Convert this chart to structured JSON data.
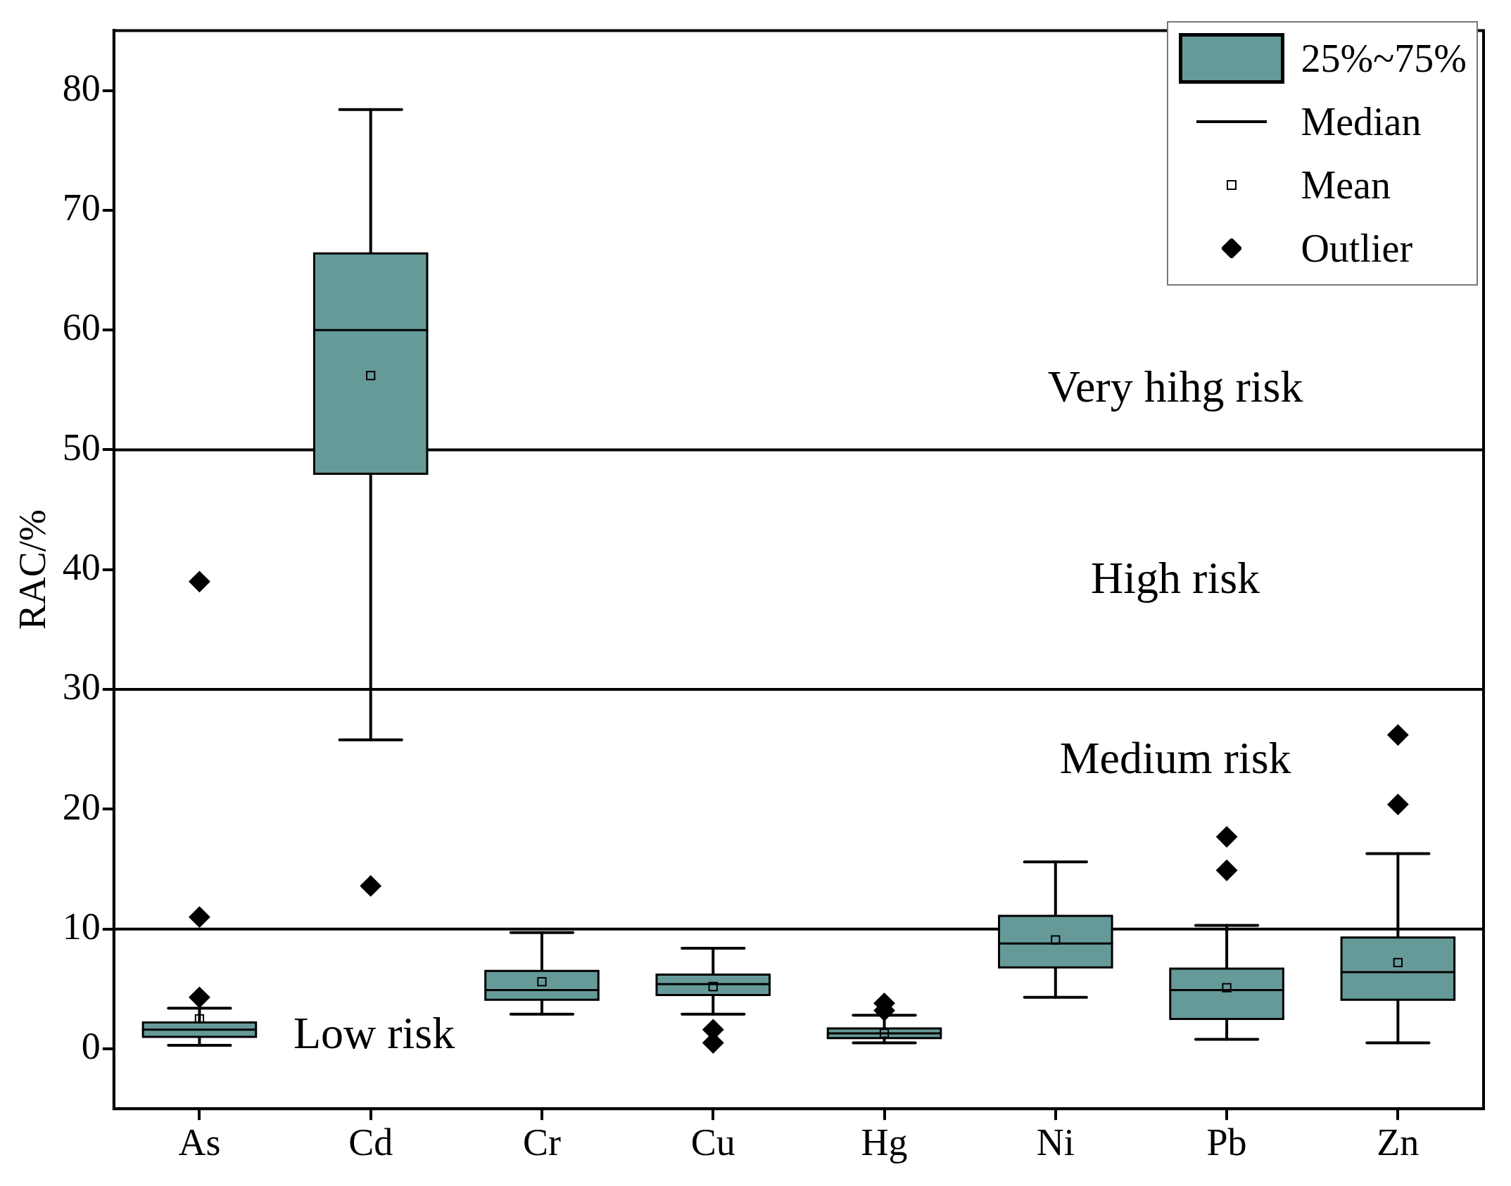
{
  "chart_data": {
    "type": "box",
    "ylabel": "RAC/%",
    "categories": [
      "As",
      "Cd",
      "Cr",
      "Cu",
      "Hg",
      "Ni",
      "Pb",
      "Zn"
    ],
    "ylim": [
      -5,
      85
    ],
    "yticks": [
      0,
      10,
      20,
      30,
      40,
      50,
      60,
      70,
      80
    ],
    "legend": "top right",
    "series": [
      {
        "name": "25%~75%",
        "color": "#669a98",
        "boxes": [
          {
            "low": 0.3,
            "q1": 1.0,
            "median": 1.6,
            "q3": 2.2,
            "high": 3.4
          },
          {
            "low": 25.8,
            "q1": 48.0,
            "median": 60.0,
            "q3": 66.4,
            "high": 78.4
          },
          {
            "low": 2.9,
            "q1": 4.1,
            "median": 4.9,
            "q3": 6.5,
            "high": 9.7
          },
          {
            "low": 2.9,
            "q1": 4.5,
            "median": 5.4,
            "q3": 6.2,
            "high": 8.4
          },
          {
            "low": 0.5,
            "q1": 0.9,
            "median": 1.3,
            "q3": 1.7,
            "high": 2.8
          },
          {
            "low": 4.3,
            "q1": 6.8,
            "median": 8.8,
            "q3": 11.1,
            "high": 15.6
          },
          {
            "low": 0.8,
            "q1": 2.5,
            "median": 4.9,
            "q3": 6.7,
            "high": 10.3
          },
          {
            "low": 0.5,
            "q1": 4.1,
            "median": 6.4,
            "q3": 9.3,
            "high": 16.3
          }
        ]
      },
      {
        "name": "Mean",
        "type": "scatter",
        "marker": "square",
        "color": "#000000",
        "values": [
          2.5,
          56.2,
          5.6,
          5.2,
          1.3,
          9.1,
          5.1,
          7.2
        ]
      },
      {
        "name": "Outlier",
        "type": "scatter",
        "marker": "diamond",
        "color": "#000000",
        "x": [
          "As",
          "As",
          "As",
          "Cd",
          "Cu",
          "Cu",
          "Hg",
          "Hg",
          "Pb",
          "Pb",
          "Zn",
          "Zn"
        ],
        "values": [
          4.3,
          11.0,
          39.0,
          13.6,
          1.6,
          0.5,
          3.8,
          3.2,
          14.9,
          17.7,
          20.4,
          26.2
        ]
      }
    ],
    "ref_lines": [
      {
        "axis": "y",
        "value": 10,
        "color": "#000000"
      },
      {
        "axis": "y",
        "value": 30,
        "color": "#000000"
      },
      {
        "axis": "y",
        "value": 50,
        "color": "#000000"
      }
    ],
    "annotations": [
      "Median",
      "Low risk",
      "Medium risk",
      "High risk",
      "Very hihg risk"
    ]
  }
}
